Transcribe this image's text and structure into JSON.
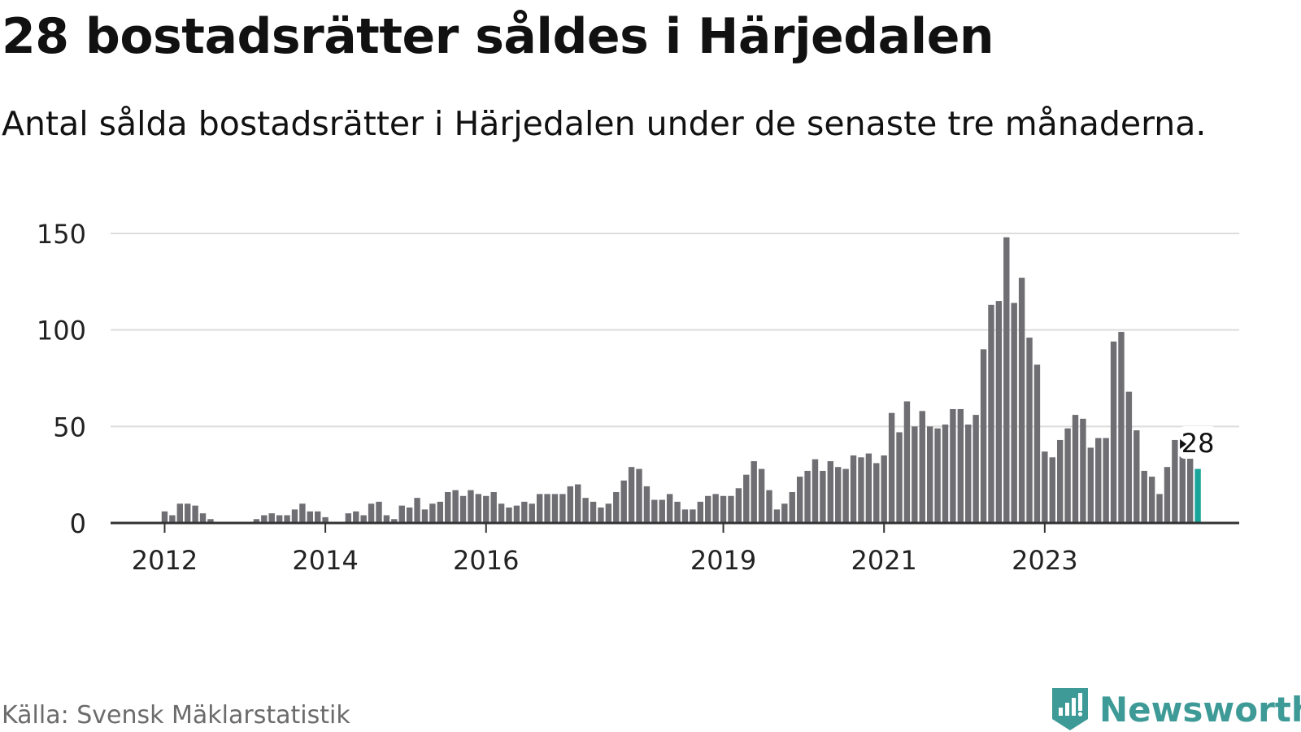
{
  "title": "28 bostadsrätter såldes i Härjedalen",
  "subtitle": "Antal sålda bostadsrätter i Härjedalen under de senaste tre månaderna.",
  "source": "Källa: Svensk Mäklarstatistik",
  "brand": {
    "name": "Newsworthy",
    "icon": "newsworthy-logo-icon",
    "color": "#3d9a96"
  },
  "colors": {
    "bar": "#6f6e73",
    "highlight": "#1aa59a",
    "grid": "#dddddd",
    "axis": "#333333"
  },
  "chart_data": {
    "type": "bar",
    "ylim": [
      0,
      150
    ],
    "yticks": [
      0,
      50,
      100,
      150
    ],
    "xticks": [
      {
        "label": "2012",
        "index": 6
      },
      {
        "label": "2014",
        "index": 27
      },
      {
        "label": "2016",
        "index": 48
      },
      {
        "label": "2019",
        "index": 79
      },
      {
        "label": "2021",
        "index": 100
      },
      {
        "label": "2023",
        "index": 121
      }
    ],
    "values": [
      0,
      0,
      0,
      0,
      0,
      0,
      6,
      4,
      10,
      10,
      9,
      5,
      2,
      0,
      0,
      0,
      0,
      0,
      2,
      4,
      5,
      4,
      4,
      7,
      10,
      6,
      6,
      3,
      0,
      0,
      5,
      6,
      4,
      10,
      11,
      4,
      2,
      9,
      8,
      13,
      7,
      10,
      11,
      16,
      17,
      14,
      17,
      15,
      14,
      16,
      10,
      8,
      9,
      11,
      10,
      15,
      15,
      15,
      15,
      19,
      20,
      13,
      11,
      8,
      10,
      16,
      22,
      29,
      28,
      19,
      12,
      12,
      15,
      11,
      7,
      7,
      11,
      14,
      15,
      14,
      14,
      18,
      25,
      32,
      28,
      17,
      7,
      10,
      16,
      24,
      27,
      33,
      27,
      32,
      29,
      28,
      35,
      34,
      36,
      31,
      35,
      57,
      47,
      63,
      50,
      58,
      50,
      49,
      51,
      59,
      59,
      51,
      56,
      90,
      113,
      115,
      148,
      114,
      127,
      96,
      82,
      37,
      34,
      43,
      49,
      56,
      54,
      39,
      44,
      44,
      94,
      99,
      68,
      48,
      27,
      24,
      15,
      29,
      43,
      37,
      34,
      28
    ],
    "highlight_last": true,
    "last_value_label": "28"
  }
}
